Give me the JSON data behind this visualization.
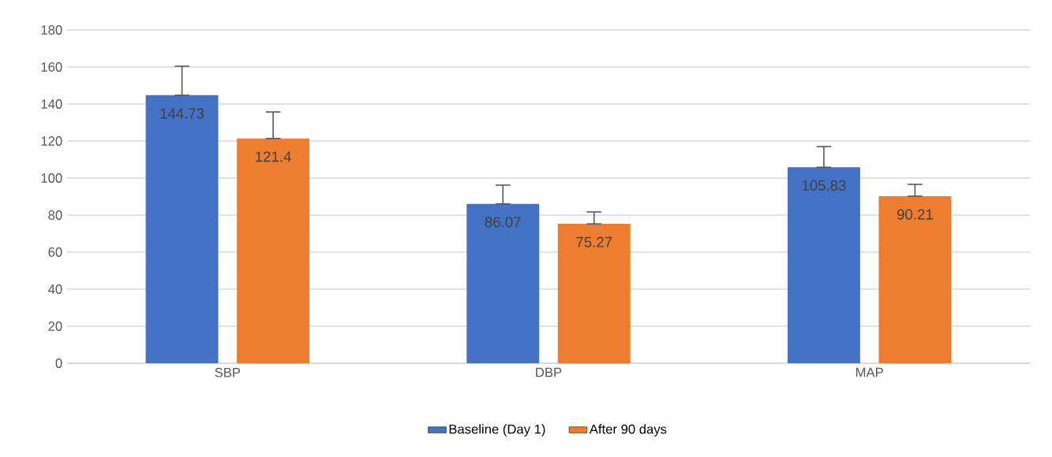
{
  "chart_data": {
    "type": "bar",
    "categories": [
      "SBP",
      "DBP",
      "MAP"
    ],
    "series": [
      {
        "name": "Baseline (Day 1)",
        "color": "#4472c4",
        "values": [
          144.73,
          86.07,
          105.83
        ],
        "errors": [
          [
            144.73,
            160.4
          ],
          [
            86.07,
            96.2
          ],
          [
            105.83,
            117.0
          ]
        ]
      },
      {
        "name": "After 90 days",
        "color": "#ed7d31",
        "values": [
          121.4,
          75.27,
          90.21
        ],
        "errors": [
          [
            121.4,
            135.7
          ],
          [
            75.27,
            81.7
          ],
          [
            90.21,
            96.6
          ]
        ]
      }
    ],
    "ylim": [
      0,
      180
    ],
    "yticks": [
      0,
      20,
      40,
      60,
      80,
      100,
      120,
      140,
      160,
      180
    ],
    "grid": "y",
    "legend": "bottom",
    "data_labels": true
  }
}
